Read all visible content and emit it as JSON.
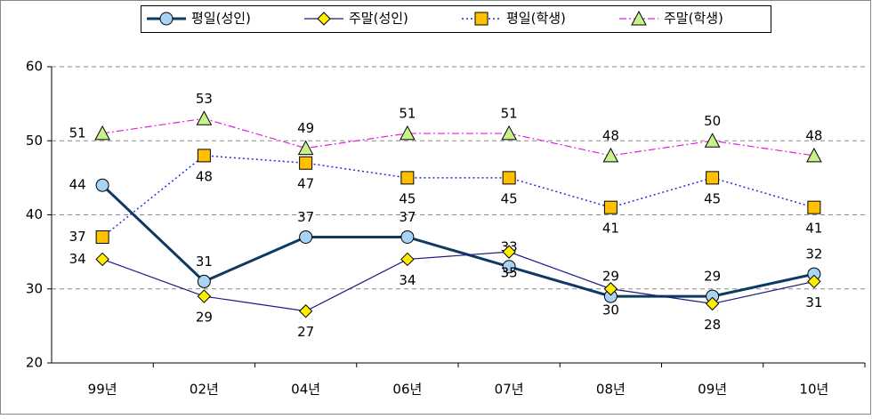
{
  "chart_data": {
    "type": "line",
    "categories": [
      "99년",
      "02년",
      "04년",
      "06년",
      "07년",
      "08년",
      "09년",
      "10년"
    ],
    "series": [
      {
        "name": "평일(성인)",
        "color": "#0d3a63",
        "marker": "circle",
        "marker_color": "#a9d3f5",
        "linestyle": "solid",
        "linewidth": 3,
        "values": [
          44,
          31,
          37,
          37,
          33,
          29,
          29,
          32
        ]
      },
      {
        "name": "주말(성인)",
        "color": "#1a1a80",
        "marker": "diamond",
        "marker_color": "#ffee00",
        "linestyle": "solid",
        "linewidth": 1.2,
        "values": [
          34,
          29,
          27,
          34,
          35,
          30,
          28,
          31
        ]
      },
      {
        "name": "평일(학생)",
        "color": "#1f2fd0",
        "marker": "square",
        "marker_color": "#ffc000",
        "linestyle": "dotted",
        "linewidth": 1.5,
        "values": [
          37,
          48,
          47,
          45,
          45,
          41,
          45,
          41
        ]
      },
      {
        "name": "주말(학생)",
        "color": "#e020e0",
        "marker": "triangle",
        "marker_color": "#c6f28a",
        "linestyle": "dashdot",
        "linewidth": 1.2,
        "values": [
          51,
          53,
          49,
          51,
          51,
          48,
          50,
          48
        ]
      }
    ],
    "ylim": [
      20,
      60
    ],
    "yticks": [
      20,
      30,
      40,
      50,
      60
    ],
    "grid": true,
    "legend": "top"
  }
}
